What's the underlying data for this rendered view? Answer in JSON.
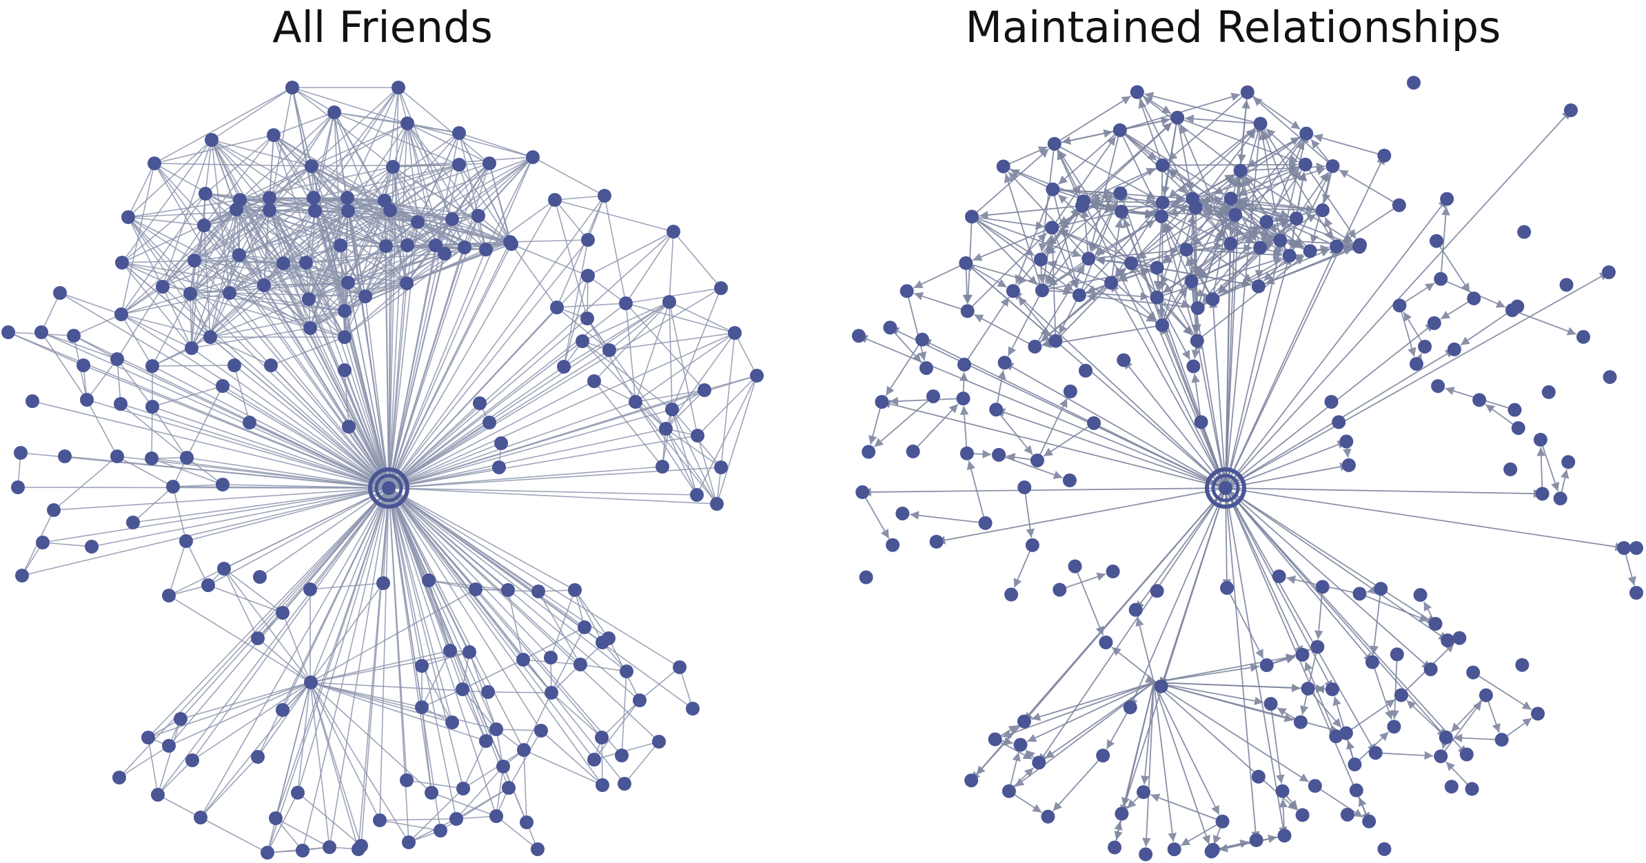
{
  "left": {
    "title": "All Friends"
  },
  "right": {
    "title": "Maintained Relationships"
  },
  "colors": {
    "node": "#4a5595",
    "edge": "#8c94ad",
    "background": "#ffffff"
  }
}
